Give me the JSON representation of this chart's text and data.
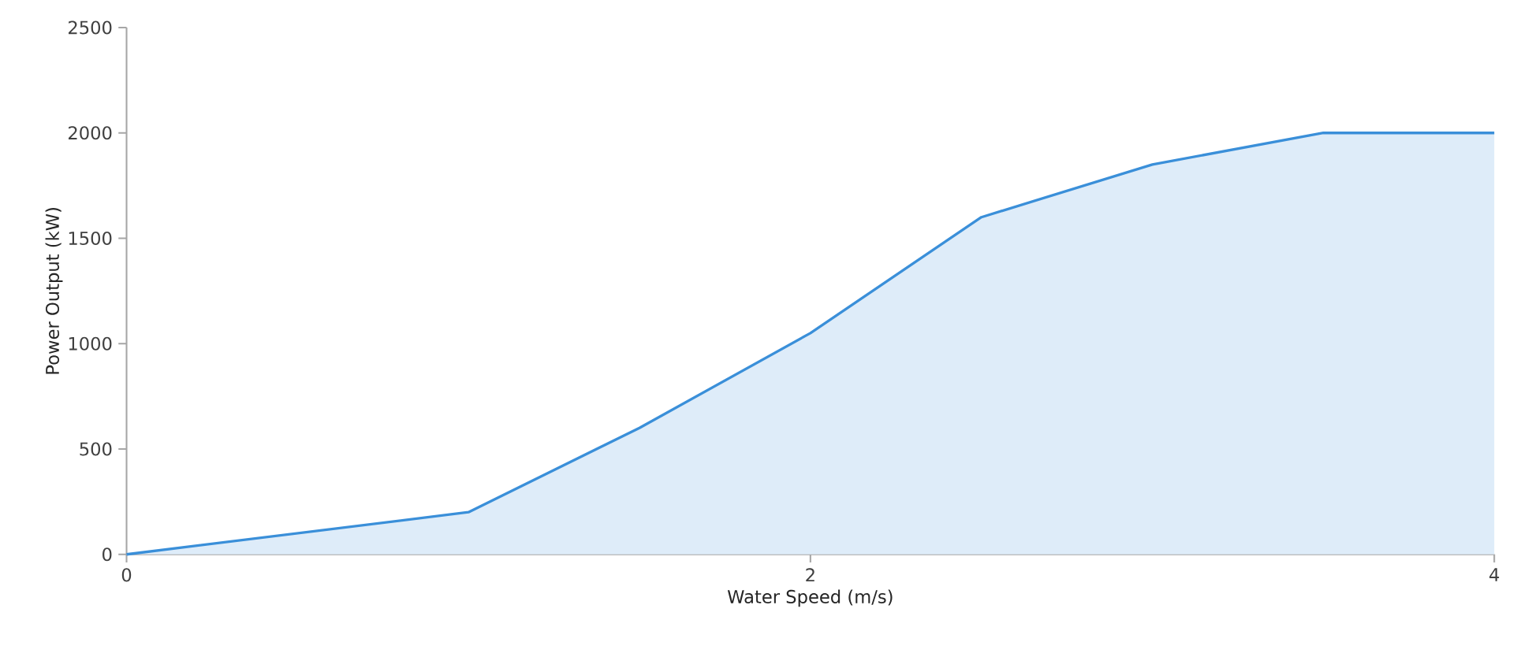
{
  "chart_data": {
    "type": "area",
    "xlabel": "Water Speed (m/s)",
    "ylabel": "Power Output (kW)",
    "x": [
      0,
      1,
      1.5,
      2,
      2.5,
      3,
      3.5,
      4
    ],
    "series": [
      {
        "color": "#3a8fd9",
        "values": [
          0,
          200,
          600,
          1050,
          1600,
          1850,
          2000,
          2000
        ]
      }
    ],
    "xlim": [
      0,
      4
    ],
    "xticks": [
      0,
      2,
      4
    ],
    "ylim": [
      0,
      2500
    ],
    "yticks": [
      0,
      500,
      1000,
      1500,
      2000,
      2500
    ],
    "grid": false
  }
}
